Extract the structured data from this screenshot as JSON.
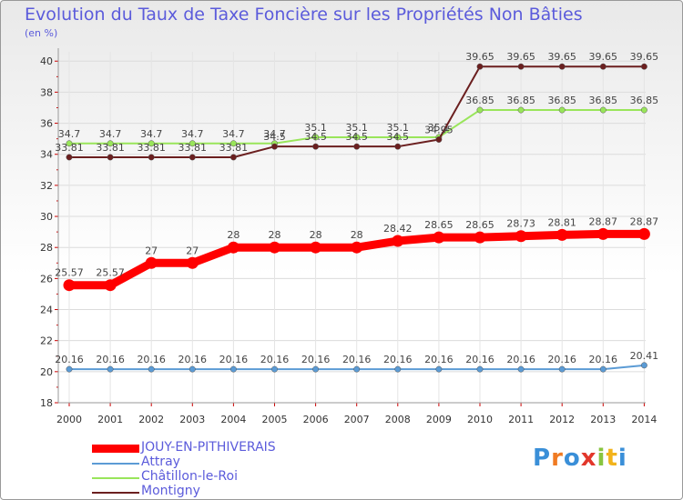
{
  "chart_data": {
    "type": "line",
    "title": "Evolution du Taux de Taxe Foncière sur les Propriétés Non Bâties",
    "ylabel": "(en %)",
    "xlabel": "",
    "categories": [
      "2000",
      "2001",
      "2002",
      "2003",
      "2004",
      "2005",
      "2006",
      "2007",
      "2008",
      "2009",
      "2010",
      "2011",
      "2012",
      "2013",
      "2014"
    ],
    "yticks": [
      18,
      20,
      22,
      24,
      26,
      28,
      30,
      32,
      34,
      36,
      38,
      40
    ],
    "ylim": [
      18,
      40.6
    ],
    "grid": true,
    "series": [
      {
        "name": "JOUY-EN-PITHIVERAIS",
        "color": "#ff0000",
        "values": [
          25.57,
          25.57,
          27,
          27,
          28,
          28,
          28,
          28,
          28.42,
          28.65,
          28.65,
          28.73,
          28.81,
          28.87,
          28.87
        ],
        "labels": [
          "25.57",
          "25.57",
          "27",
          "27",
          "28",
          "28",
          "28",
          "28",
          "28.42",
          "28.65",
          "28.65",
          "28.73",
          "28.81",
          "28.87",
          "28.87"
        ]
      },
      {
        "name": "Attray",
        "color": "#5b9bd5",
        "values": [
          20.16,
          20.16,
          20.16,
          20.16,
          20.16,
          20.16,
          20.16,
          20.16,
          20.16,
          20.16,
          20.16,
          20.16,
          20.16,
          20.16,
          20.41
        ],
        "labels": [
          "20.16",
          "20.16",
          "20.16",
          "20.16",
          "20.16",
          "20.16",
          "20.16",
          "20.16",
          "20.16",
          "20.16",
          "20.16",
          "20.16",
          "20.16",
          "20.16",
          "20.41"
        ]
      },
      {
        "name": "Châtillon-le-Roi",
        "color": "#99e55a",
        "values": [
          34.7,
          34.7,
          34.7,
          34.7,
          34.7,
          34.7,
          35.1,
          35.1,
          35.1,
          35.1,
          36.85,
          36.85,
          36.85,
          36.85,
          36.85
        ],
        "labels": [
          "34.7",
          "34.7",
          "34.7",
          "34.7",
          "34.7",
          "34.7",
          "35.1",
          "35.1",
          "35.1",
          "35.1",
          "36.85",
          "36.85",
          "36.85",
          "36.85",
          "36.85"
        ]
      },
      {
        "name": "Montigny",
        "color": "#6b1f1f",
        "values": [
          33.81,
          33.81,
          33.81,
          33.81,
          33.81,
          34.5,
          34.5,
          34.5,
          34.5,
          34.95,
          39.65,
          39.65,
          39.65,
          39.65,
          39.65
        ],
        "labels": [
          "33.81",
          "33.81",
          "33.81",
          "33.81",
          "33.81",
          "34.5",
          "34.5",
          "34.5",
          "34.5",
          "34.95",
          "39.65",
          "39.65",
          "39.65",
          "39.65",
          "39.65"
        ]
      }
    ]
  },
  "logo": {
    "letters": [
      "P",
      "r",
      "o",
      "x",
      "i",
      "t",
      "i"
    ],
    "colors": [
      "#3a8fd8",
      "#f07b22",
      "#3a8fd8",
      "#e2372b",
      "#88c540",
      "#f2b31b",
      "#3a8fd8"
    ]
  }
}
